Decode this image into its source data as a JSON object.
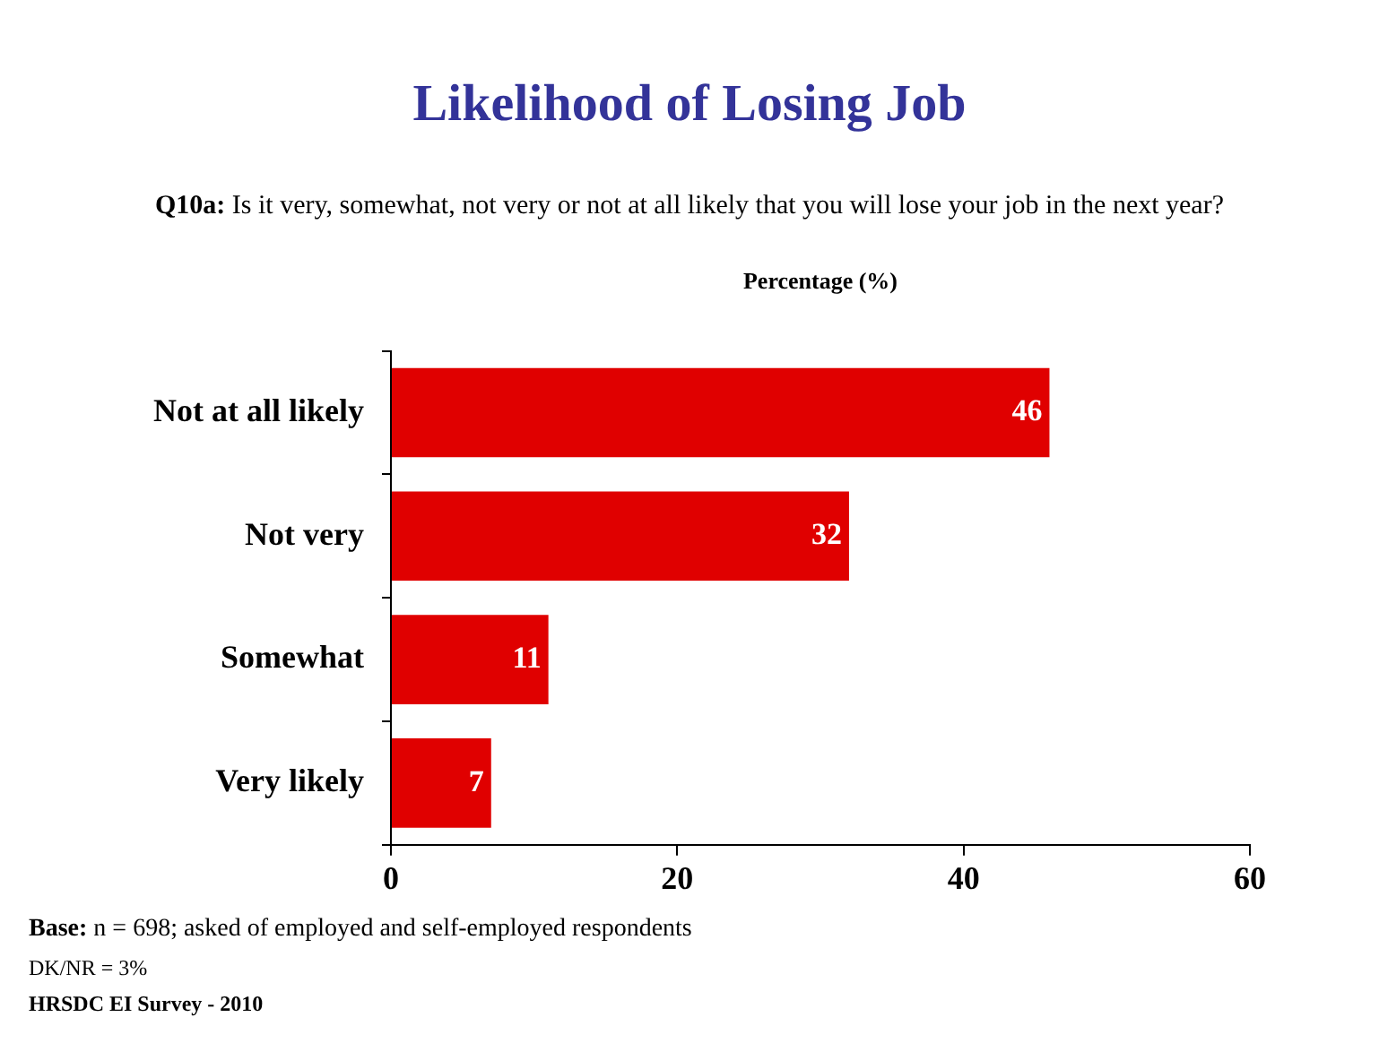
{
  "chart_data": {
    "type": "bar",
    "orientation": "horizontal",
    "title": "Likelihood of Losing Job",
    "subtitle": "Q10a: Is it very, somewhat, not very or not at all likely that you will lose your job in the next year?",
    "xlabel": "Percentage (%)",
    "categories": [
      "Not at all likely",
      "Not very",
      "Somewhat",
      "Very likely"
    ],
    "values": [
      46,
      32,
      11,
      7
    ],
    "color": "#e00000",
    "xlim": [
      0,
      60
    ],
    "xticks": [
      0,
      20,
      40,
      60
    ],
    "grid": false,
    "legend": false,
    "data_labels": true,
    "annotations": [
      "Base: n = 698; asked of employed and self-employed respondents",
      "DK/NR = 3%",
      "HRSDC EI Survey - 2010"
    ]
  }
}
